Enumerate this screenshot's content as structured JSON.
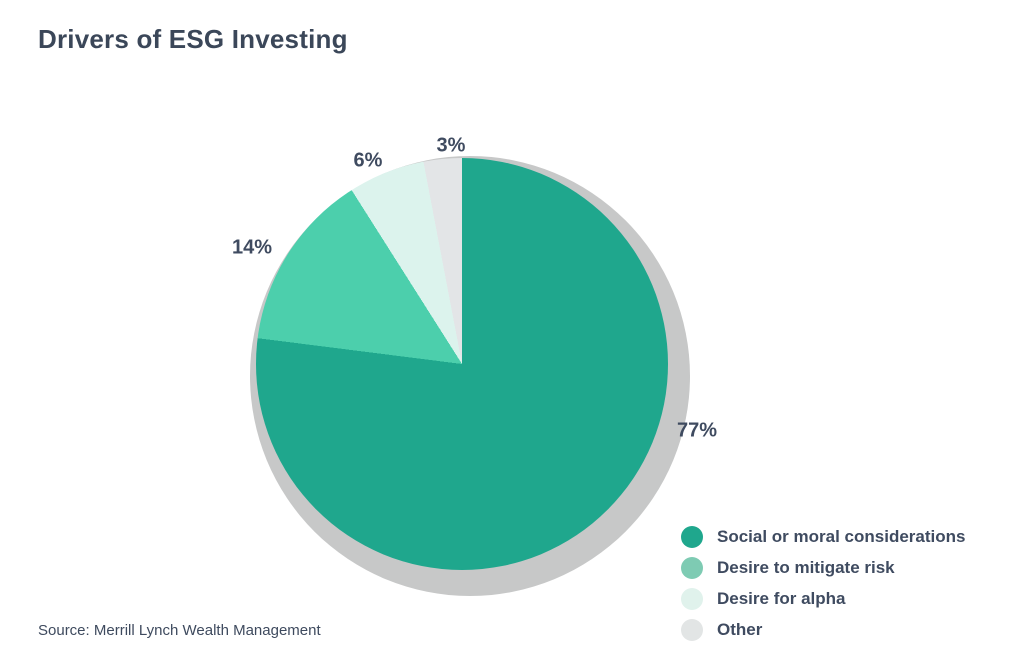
{
  "title": "Drivers of ESG Investing",
  "source": "Source: Merrill Lynch Wealth Management",
  "colors": {
    "text_dark": "#3b4759",
    "label_text": "#3f4b60",
    "pie_shadow": "#c7c8c8",
    "background": "#ffffff"
  },
  "chart_data": {
    "type": "pie",
    "title": "Drivers of ESG Investing",
    "categories": [
      "Social or moral considerations",
      "Desire to mitigate risk",
      "Desire for alpha",
      "Other"
    ],
    "values": [
      77,
      14,
      6,
      3
    ],
    "slice_colors": [
      "#1fa78d",
      "#4ccfac",
      "#dcf3ed",
      "#e3e5e7"
    ],
    "start_angle_deg": 0,
    "direction": "clockwise",
    "legend_position": "bottom-right",
    "source": "Source: Merrill Lynch Wealth Management"
  },
  "slice_labels": [
    {
      "text": "77%"
    },
    {
      "text": "14%"
    },
    {
      "text": "6%"
    },
    {
      "text": "3%"
    }
  ],
  "legend": {
    "items": [
      {
        "label": "Social or moral considerations",
        "color": "#1fa78d"
      },
      {
        "label": "Desire to mitigate risk",
        "color": "#7ecbb3"
      },
      {
        "label": "Desire for alpha",
        "color": "#e0f2ec"
      },
      {
        "label": "Other",
        "color": "#e2e5e5"
      }
    ]
  }
}
